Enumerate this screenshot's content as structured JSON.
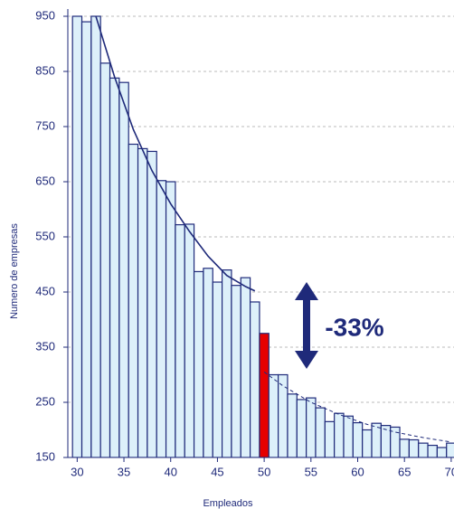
{
  "chart_data": {
    "type": "histogram",
    "x_label": "Empleados",
    "y_label": "Numero de empresas",
    "x": [
      30,
      31,
      32,
      33,
      34,
      35,
      36,
      37,
      38,
      39,
      40,
      41,
      42,
      43,
      44,
      45,
      46,
      47,
      48,
      49,
      50,
      51,
      52,
      53,
      54,
      55,
      56,
      57,
      58,
      59,
      60,
      61,
      62,
      63,
      64,
      65,
      66,
      67,
      68,
      69,
      70
    ],
    "values": [
      950,
      940,
      950,
      865,
      838,
      830,
      718,
      710,
      705,
      652,
      650,
      572,
      573,
      487,
      493,
      468,
      490,
      462,
      476,
      432,
      375,
      300,
      300,
      265,
      255,
      258,
      240,
      215,
      230,
      225,
      213,
      200,
      212,
      208,
      205,
      183,
      182,
      176,
      172,
      168,
      176
    ],
    "color": "#ddf0fa",
    "edge_color": "#1f2a7a",
    "highlight_x": 50,
    "highlight_color": "#e60000",
    "xlim": [
      29,
      70.3
    ],
    "xticks": [
      30,
      35,
      40,
      45,
      50,
      55,
      60,
      65,
      70
    ],
    "ylim": [
      150,
      950
    ],
    "yticks": [
      150,
      250,
      350,
      450,
      550,
      650,
      750,
      850,
      950
    ],
    "grid": true,
    "fits": [
      {
        "x": [
          32,
          34,
          36,
          38,
          40,
          42,
          44,
          46,
          48,
          49
        ],
        "values": [
          950,
          840,
          745,
          670,
          610,
          560,
          515,
          480,
          460,
          452
        ],
        "style": "solid"
      },
      {
        "x": [
          50,
          52,
          55,
          58,
          61,
          64,
          67,
          70
        ],
        "values": [
          305,
          280,
          250,
          228,
          210,
          196,
          186,
          178
        ],
        "style": "dashed"
      }
    ],
    "annotation": "-33%"
  }
}
